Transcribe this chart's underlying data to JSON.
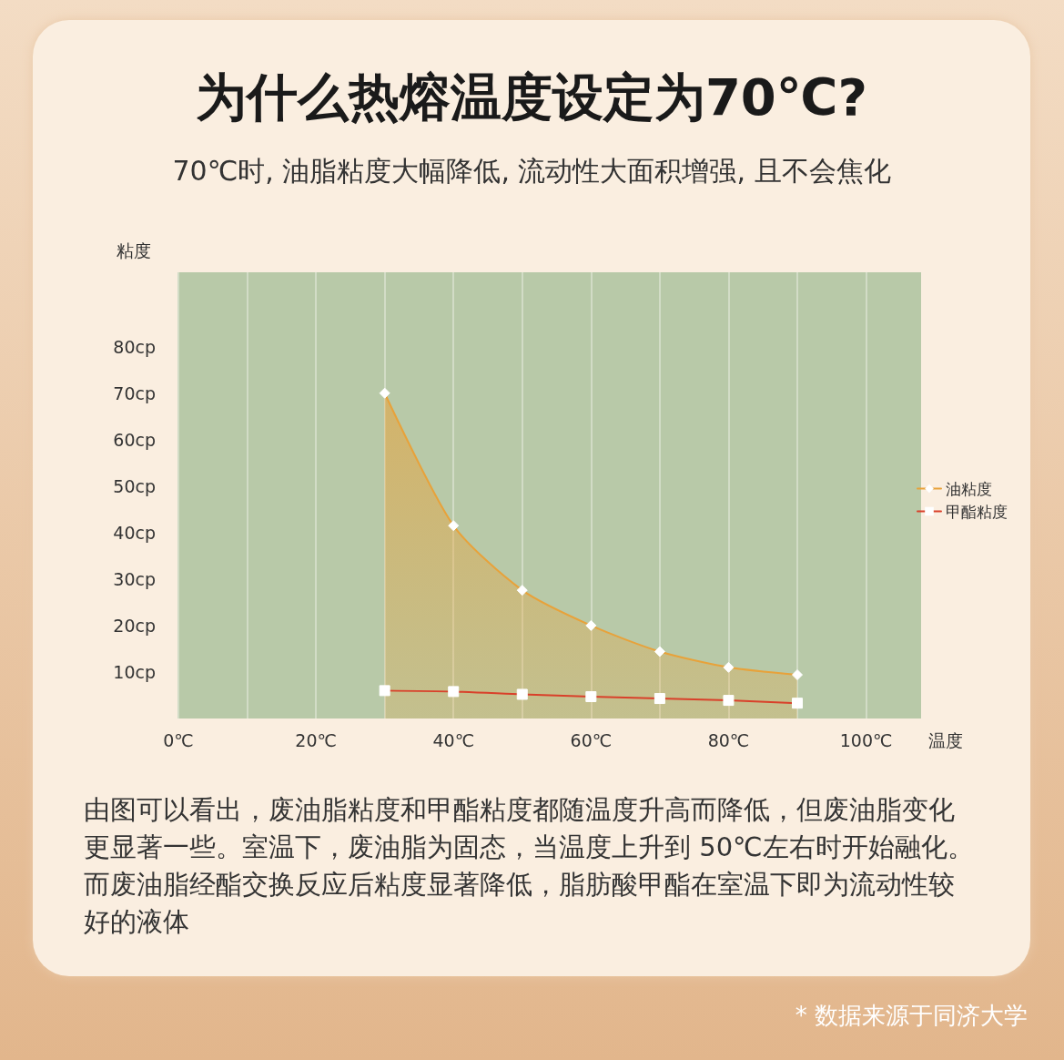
{
  "chart_data": {
    "type": "line",
    "title": "为什么热熔温度设定为70℃?",
    "subtitle": "70℃时, 油脂粘度大幅降低, 流动性大面积增强, 且不会焦化",
    "xlabel": "温度",
    "ylabel": "粘度",
    "x": [
      30,
      40,
      50,
      60,
      70,
      80,
      90
    ],
    "series": [
      {
        "name": "油粘度",
        "type": "area",
        "color": "#e8a23a",
        "marker": "diamond",
        "values": [
          70,
          41.5,
          27.6,
          20,
          14.4,
          11,
          9.4
        ]
      },
      {
        "name": "甲酯粘度",
        "color": "#d9402a",
        "marker": "square",
        "values": [
          6,
          5.8,
          5.2,
          4.7,
          4.3,
          3.9,
          3.3
        ]
      }
    ],
    "xlim": [
      0,
      108
    ],
    "xticks": [
      {
        "value": 0,
        "label": "0℃"
      },
      {
        "value": 10,
        "label": null
      },
      {
        "value": 20,
        "label": "20℃"
      },
      {
        "value": 30,
        "label": null
      },
      {
        "value": 40,
        "label": "40℃"
      },
      {
        "value": 50,
        "label": null
      },
      {
        "value": 60,
        "label": "60℃"
      },
      {
        "value": 70,
        "label": null
      },
      {
        "value": 80,
        "label": "80℃"
      },
      {
        "value": 90,
        "label": null
      },
      {
        "value": 100,
        "label": "100℃"
      }
    ],
    "ylim": [
      0,
      96
    ],
    "yticks": [
      {
        "value": 10,
        "label": "10cp"
      },
      {
        "value": 20,
        "label": "20cp"
      },
      {
        "value": 30,
        "label": "30cp"
      },
      {
        "value": 40,
        "label": "40cp"
      },
      {
        "value": 50,
        "label": "50cp"
      },
      {
        "value": 60,
        "label": "60cp"
      },
      {
        "value": 70,
        "label": "70cp"
      },
      {
        "value": 80,
        "label": "80cp"
      }
    ],
    "grid": "x",
    "legend": "right",
    "annotations": [
      "由图可以看出，废油脂粘度和甲酯粘度都随温度升高而降低，但废油脂变化更显著一些。室温下，废油脂为固态，当温度上升到 50℃左右时开始融化。而废油脂经酯交换反应后粘度显著降低，脂肪酸甲酯在室温下即为流动性较好的液体",
      "* 数据来源于同济大学"
    ]
  }
}
